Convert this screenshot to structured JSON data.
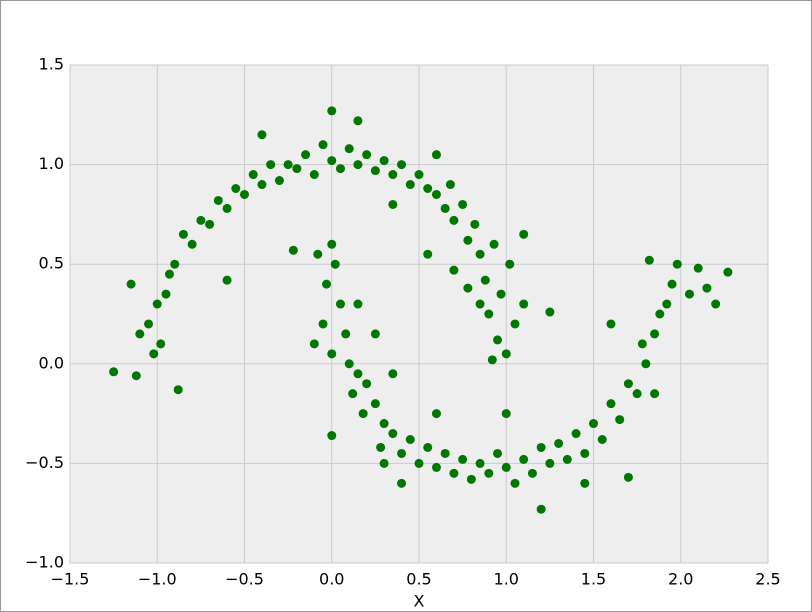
{
  "chart_data": {
    "type": "scatter",
    "xlabel": "X",
    "color": "#007700",
    "grid": true,
    "xlim": [
      -1.5,
      2.5
    ],
    "xticks": [
      {
        "value": -1.5,
        "label": "−1.5"
      },
      {
        "value": -1.0,
        "label": "−1.0"
      },
      {
        "value": -0.5,
        "label": "−0.5"
      },
      {
        "value": 0.0,
        "label": "0.0"
      },
      0.5,
      {
        "value": 1.0,
        "label": "1.0"
      },
      1.5,
      {
        "value": 2.0,
        "label": "2.0"
      },
      2.5
    ],
    "ylim": [
      -1.0,
      1.5
    ],
    "yticks": [
      {
        "value": -1.0,
        "label": "−1.0"
      },
      {
        "value": -0.5,
        "label": "−0.5"
      },
      {
        "value": 0.0,
        "label": "0.0"
      },
      0.5,
      {
        "value": 1.0,
        "label": "1.0"
      },
      1.5
    ],
    "x": [
      1.0,
      0.95,
      1.05,
      0.9,
      1.1,
      0.97,
      0.88,
      1.02,
      0.85,
      0.93,
      0.78,
      0.82,
      0.7,
      0.75,
      0.65,
      0.6,
      0.68,
      0.55,
      0.5,
      0.45,
      0.4,
      0.35,
      0.3,
      0.25,
      0.2,
      0.15,
      0.1,
      0.05,
      0.0,
      -0.05,
      -0.1,
      -0.15,
      -0.2,
      -0.25,
      -0.3,
      -0.35,
      -0.4,
      -0.45,
      -0.5,
      -0.55,
      -0.6,
      -0.65,
      -0.7,
      -0.75,
      -0.8,
      -0.85,
      -0.9,
      -0.93,
      -0.95,
      -1.0,
      -1.05,
      -1.1,
      -0.98,
      -1.02,
      -1.15,
      -1.25,
      -1.12,
      -0.88,
      0.0,
      0.15,
      -0.22,
      0.55,
      1.1,
      1.25,
      0.35,
      -0.6,
      0.6,
      0.85,
      0.92,
      -0.4,
      0.78,
      0.7,
      0.0,
      0.02,
      -0.03,
      0.05,
      -0.05,
      0.08,
      0.0,
      0.1,
      -0.1,
      0.15,
      0.12,
      0.2,
      0.18,
      0.25,
      0.3,
      0.28,
      0.35,
      0.4,
      0.45,
      0.5,
      0.55,
      0.6,
      0.65,
      0.7,
      0.75,
      0.8,
      0.85,
      0.9,
      0.95,
      1.0,
      1.05,
      1.1,
      1.15,
      1.2,
      1.25,
      1.3,
      1.35,
      1.4,
      1.45,
      1.5,
      1.55,
      1.6,
      1.65,
      1.7,
      1.75,
      1.8,
      1.78,
      1.85,
      1.88,
      1.92,
      1.95,
      1.98,
      2.05,
      2.1,
      2.15,
      2.27,
      2.2,
      1.82,
      1.6,
      1.2,
      0.0,
      0.25,
      0.35,
      -0.08,
      0.4,
      1.7,
      1.85,
      0.6,
      1.0,
      1.45,
      0.15,
      0.3
    ],
    "values": [
      0.05,
      0.12,
      0.2,
      0.25,
      0.3,
      0.35,
      0.42,
      0.5,
      0.55,
      0.6,
      0.62,
      0.7,
      0.72,
      0.8,
      0.78,
      0.85,
      0.9,
      0.88,
      0.95,
      0.9,
      1.0,
      0.95,
      1.02,
      0.97,
      1.05,
      1.0,
      1.08,
      0.98,
      1.02,
      1.1,
      0.95,
      1.05,
      0.98,
      1.0,
      0.92,
      1.0,
      0.9,
      0.95,
      0.85,
      0.88,
      0.78,
      0.82,
      0.7,
      0.72,
      0.6,
      0.65,
      0.5,
      0.45,
      0.35,
      0.3,
      0.2,
      0.15,
      0.1,
      0.05,
      0.4,
      -0.04,
      -0.06,
      -0.13,
      1.27,
      1.22,
      0.57,
      0.55,
      0.65,
      0.26,
      0.8,
      0.42,
      1.05,
      0.3,
      0.02,
      1.15,
      0.38,
      0.47,
      0.6,
      0.5,
      0.4,
      0.3,
      0.2,
      0.15,
      0.05,
      0.0,
      0.1,
      -0.05,
      -0.15,
      -0.1,
      -0.25,
      -0.2,
      -0.3,
      -0.42,
      -0.35,
      -0.45,
      -0.38,
      -0.5,
      -0.42,
      -0.52,
      -0.45,
      -0.55,
      -0.48,
      -0.58,
      -0.5,
      -0.55,
      -0.45,
      -0.52,
      -0.6,
      -0.48,
      -0.55,
      -0.42,
      -0.5,
      -0.4,
      -0.48,
      -0.35,
      -0.45,
      -0.3,
      -0.38,
      -0.2,
      -0.28,
      -0.1,
      -0.15,
      0.0,
      0.1,
      0.15,
      0.25,
      0.3,
      0.4,
      0.5,
      0.35,
      0.48,
      0.38,
      0.46,
      0.3,
      0.52,
      0.2,
      -0.73,
      -0.36,
      0.15,
      -0.05,
      0.55,
      -0.6,
      -0.57,
      -0.15,
      -0.25,
      -0.25,
      -0.6,
      0.3,
      -0.5
    ]
  }
}
